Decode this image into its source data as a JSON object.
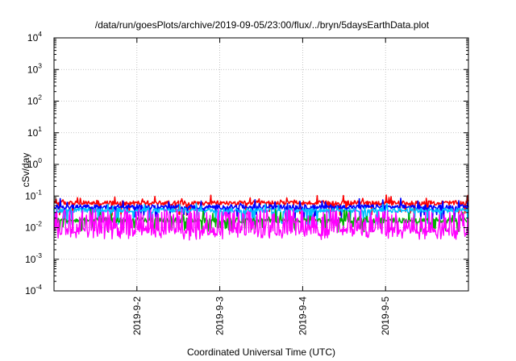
{
  "chart_data": {
    "type": "line",
    "title": "/data/run/goesPlots/archive/2019-09-05/23:00/flux/../bryn/5daysEarthData.plot",
    "xlabel": "Coordinated Universal Time (UTC)",
    "ylabel": "cSv/day",
    "y_scale": "log",
    "xlim": [
      "2019-09-01T00:00",
      "2019-09-06T00:00"
    ],
    "ylim": [
      0.0001,
      10000
    ],
    "x_ticks": [
      "2019-9-2",
      "2019-9-3",
      "2019-9-4",
      "2019-9-5"
    ],
    "x_tick_values": [
      "2019-09-02T00:00",
      "2019-09-03T00:00",
      "2019-09-04T00:00",
      "2019-09-05T00:00"
    ],
    "y_ticks": [
      {
        "value": 10000,
        "base": "10",
        "exp": "4"
      },
      {
        "value": 1000,
        "base": "10",
        "exp": "3"
      },
      {
        "value": 100,
        "base": "10",
        "exp": "2"
      },
      {
        "value": 10,
        "base": "10",
        "exp": "1"
      },
      {
        "value": 1,
        "base": "10",
        "exp": "0"
      },
      {
        "value": 0.1,
        "base": "10",
        "exp": "-1"
      },
      {
        "value": 0.01,
        "base": "10",
        "exp": "-2"
      },
      {
        "value": 0.001,
        "base": "10",
        "exp": "-3"
      },
      {
        "value": 0.0001,
        "base": "10",
        "exp": "-4"
      }
    ],
    "grid": true,
    "legend": "none",
    "series": [
      {
        "color": "#ff0000",
        "typical": 0.06,
        "spread_decades": 0.07,
        "dip_low": 0.03,
        "dip_probability": 0.05,
        "spike_high": 0.11
      },
      {
        "color": "#0000ff",
        "typical": 0.045,
        "spread_decades": 0.07,
        "dip_low": 0.022,
        "dip_probability": 0.06,
        "spike_high": 0.085
      },
      {
        "color": "#00bfff",
        "typical": 0.035,
        "spread_decades": 0.07,
        "dip_low": 0.015,
        "dip_probability": 0.08,
        "spike_high": 0.06
      },
      {
        "color": "#00b000",
        "typical": 0.017,
        "spread_decades": 0.08,
        "dip_low": 0.009,
        "dip_probability": 0.1,
        "spike_high": 0.04
      },
      {
        "color": "#ff00ff",
        "typical": 0.0075,
        "spread_decades": 0.12,
        "dip_low": 0.005,
        "dip_probability": 0.1,
        "spike_high": 0.038,
        "spike_probability": 0.45
      }
    ]
  }
}
